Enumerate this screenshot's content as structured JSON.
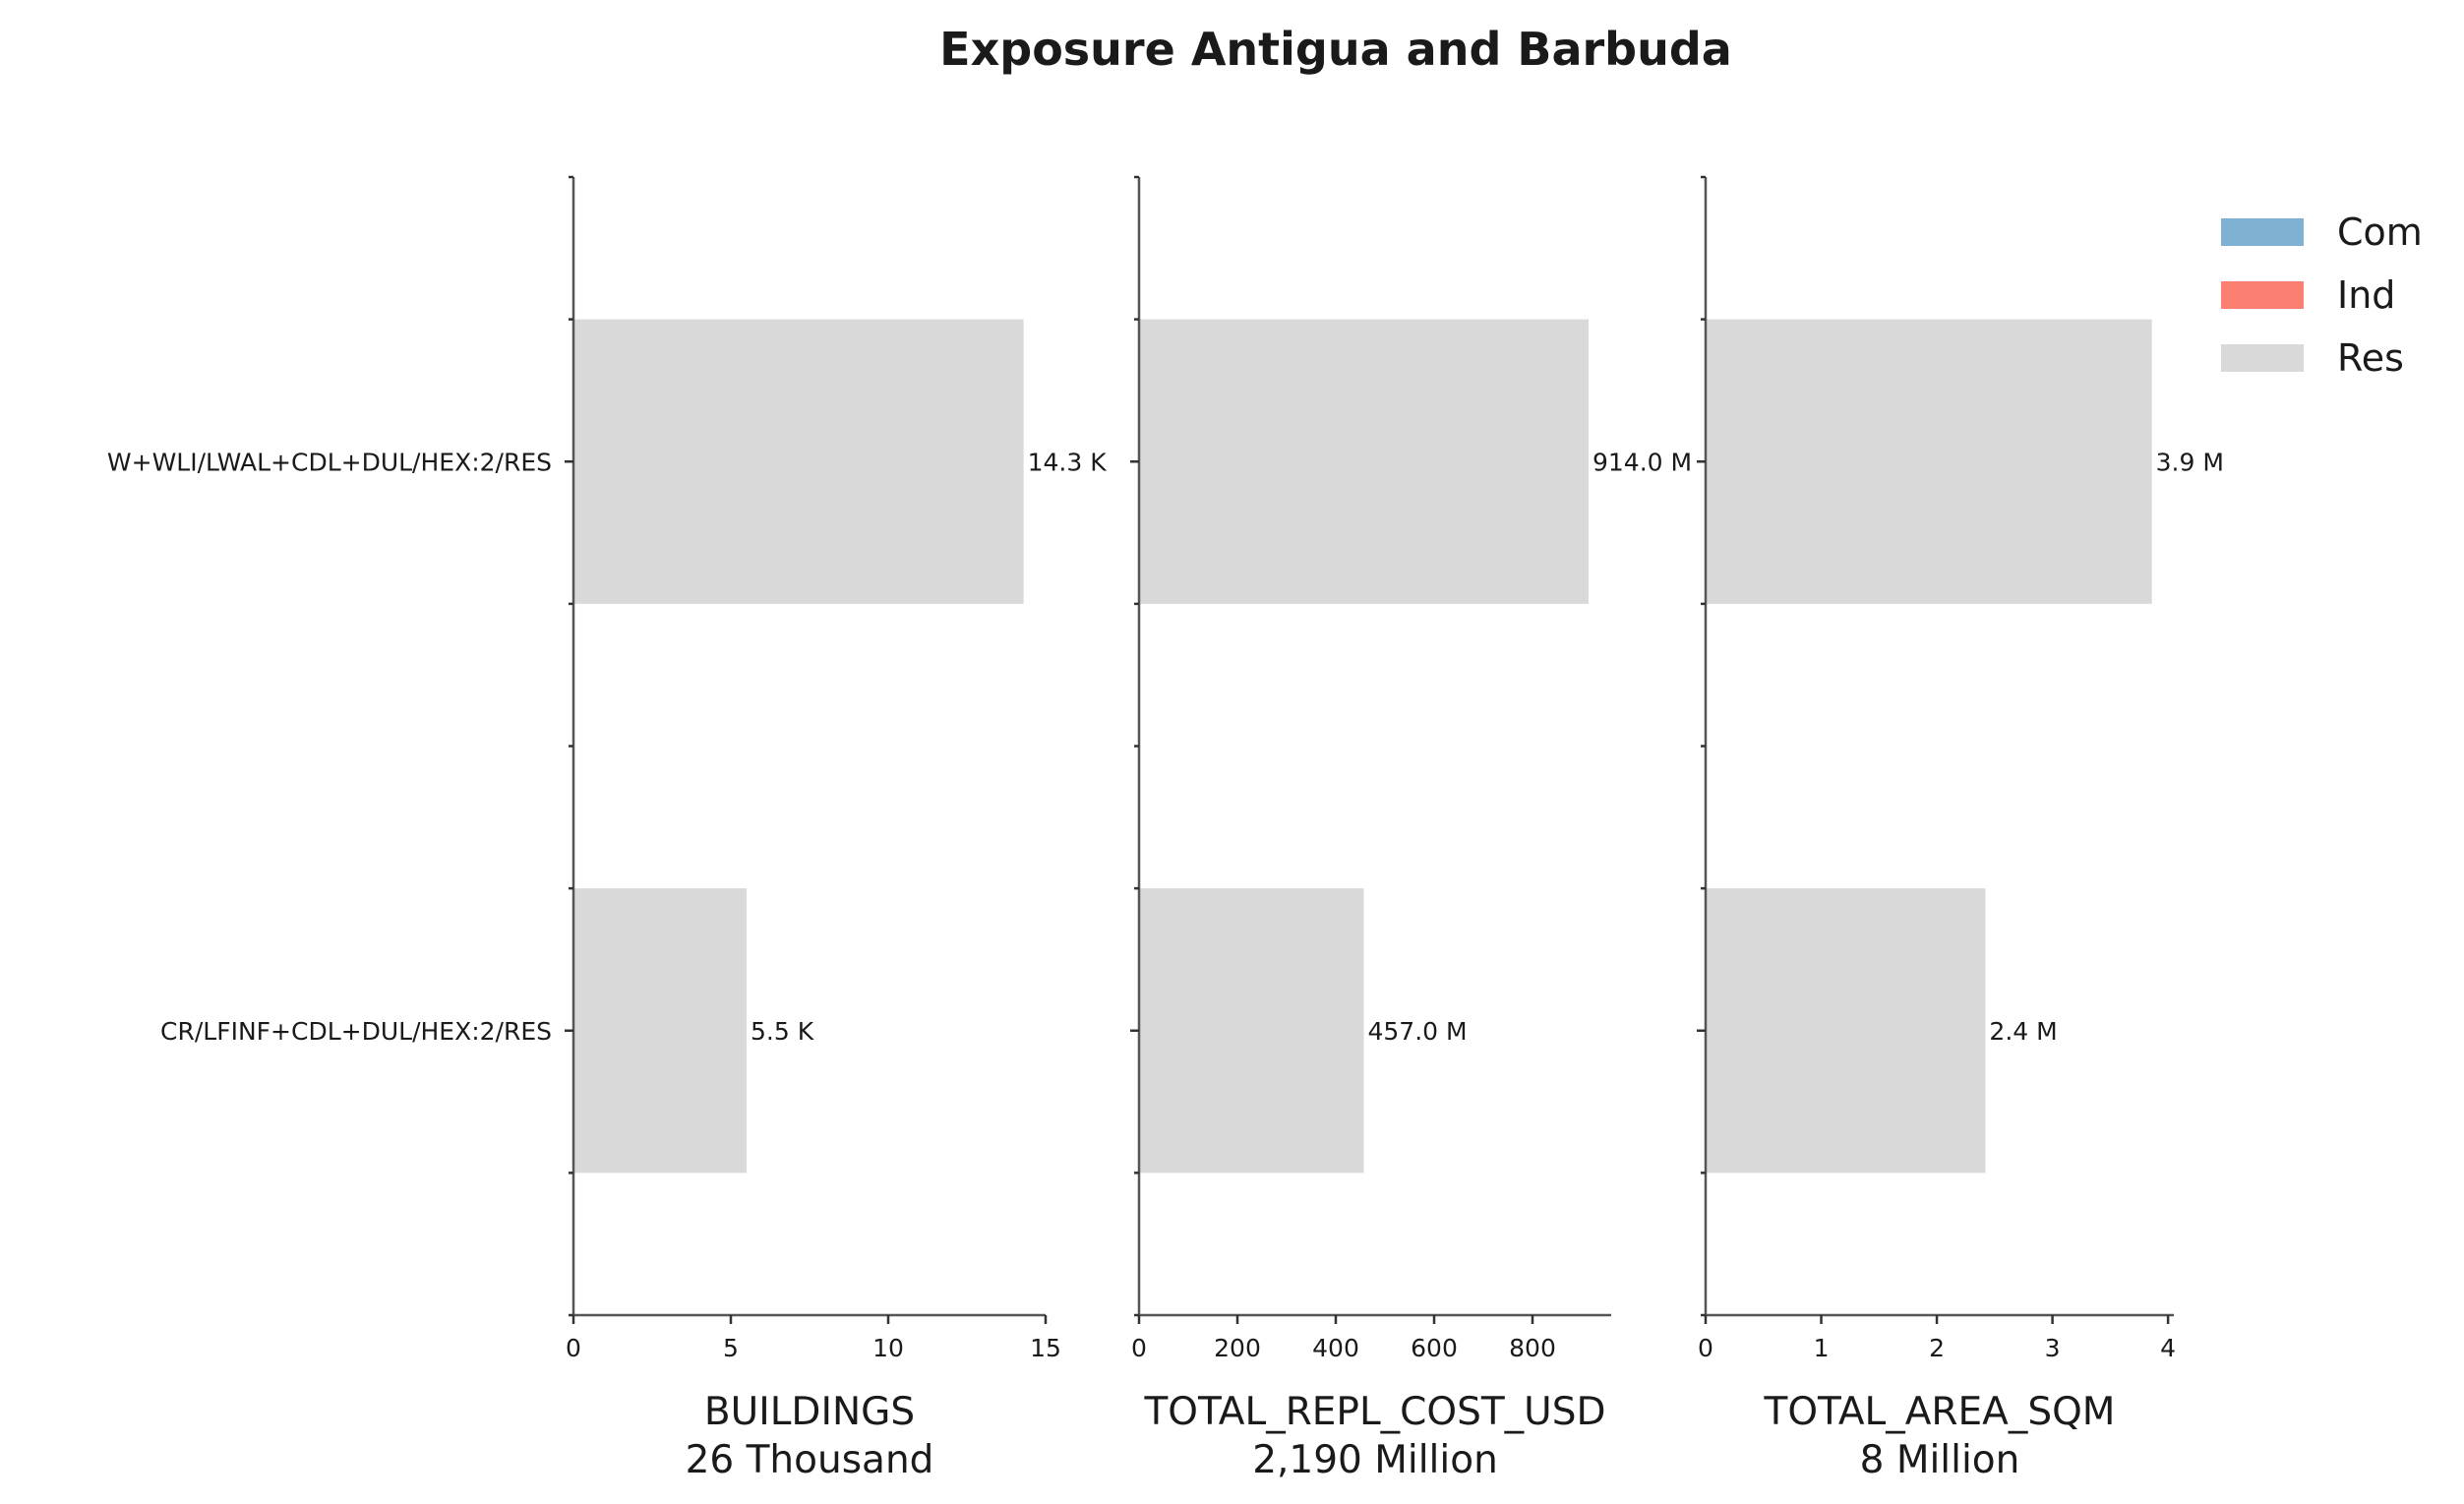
{
  "chart_data": {
    "type": "bar",
    "orientation": "horizontal",
    "title": "Exposure Antigua and Barbuda",
    "categories": [
      "W+WLI/LWAL+CDL+DUL/HEX:2/RES",
      "CR/LFINF+CDL+DUL/HEX:2/RES"
    ],
    "legend": {
      "placement": "top-right",
      "entries": [
        {
          "name": "Com",
          "color": "#7fb1d3"
        },
        {
          "name": "Ind",
          "color": "#fb8072"
        },
        {
          "name": "Res",
          "color": "#d9d9d9"
        }
      ]
    },
    "panels": [
      {
        "xlabel": "BUILDINGS",
        "total_label": "26 Thousand",
        "xlim": [
          0,
          15
        ],
        "ticks": [
          0,
          5,
          10,
          15
        ],
        "tick_labels": [
          "0",
          "5",
          "10",
          "15"
        ],
        "series": [
          {
            "name": "Res",
            "values": [
              14.3,
              5.5
            ]
          }
        ],
        "data_labels": [
          "14.3 K",
          "5.5 K"
        ]
      },
      {
        "xlabel": "TOTAL_REPL_COST_USD",
        "total_label": "2,190 Million",
        "xlim": [
          0,
          960
        ],
        "ticks": [
          0,
          200,
          400,
          600,
          800
        ],
        "tick_labels": [
          "0",
          "200",
          "400",
          "600",
          "800"
        ],
        "series": [
          {
            "name": "Res",
            "values": [
              914.0,
              457.0
            ]
          }
        ],
        "data_labels": [
          "914.0 M",
          "457.0 M"
        ]
      },
      {
        "xlabel": "TOTAL_AREA_SQM",
        "total_label": "8 Million",
        "xlim": [
          0,
          4.05
        ],
        "ticks": [
          0,
          1,
          2,
          3,
          4
        ],
        "tick_labels": [
          "0",
          "1",
          "2",
          "3",
          "4"
        ],
        "series": [
          {
            "name": "Res",
            "values": [
              3.86,
              2.42
            ]
          }
        ],
        "data_labels": [
          "3.9 M",
          "2.4 M"
        ]
      }
    ]
  }
}
